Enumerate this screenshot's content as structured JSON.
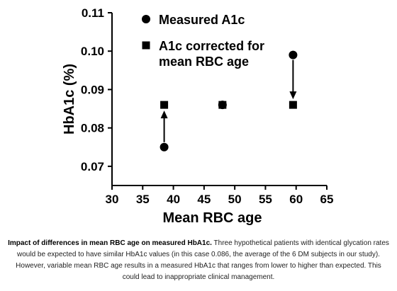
{
  "chart_data": {
    "type": "scatter",
    "xlabel": "Mean RBC age",
    "ylabel": "HbA1c (%)",
    "xlim": [
      30,
      65
    ],
    "ylim": [
      0.065,
      0.11
    ],
    "xticks": [
      "30",
      "35",
      "40",
      "45",
      "50",
      "55",
      "60",
      "65"
    ],
    "yticks": [
      "0.07",
      "0.08",
      "0.09",
      "0.10",
      "0.11"
    ],
    "grid": false,
    "legend_position": "top-right",
    "series": [
      {
        "name": "Measured A1c",
        "marker": "circle",
        "points": [
          {
            "x": 38.5,
            "y": 0.075
          },
          {
            "x": 48,
            "y": 0.086
          },
          {
            "x": 59.5,
            "y": 0.099
          }
        ]
      },
      {
        "name": "A1c corrected for mean RBC age",
        "name_lines": [
          "A1c corrected for",
          "mean RBC age"
        ],
        "marker": "square",
        "points": [
          {
            "x": 38.5,
            "y": 0.086
          },
          {
            "x": 48,
            "y": 0.086
          },
          {
            "x": 59.5,
            "y": 0.086
          }
        ]
      }
    ],
    "arrows": [
      {
        "x": 38.5,
        "from": 0.075,
        "to": 0.086
      },
      {
        "x": 59.5,
        "from": 0.099,
        "to": 0.086
      }
    ]
  },
  "caption": {
    "bold": "Impact of differences in mean RBC age on measured HbA1c.",
    "text": " Three hypothetical patients with identical glycation rates would be expected to have similar HbA1c values (in this case 0.086, the average of the 6 DM subjects in our study). However, variable mean RBC age results in a measured HbA1c that ranges from lower to higher than expected. This could lead to inappropriate clinical management."
  },
  "colors": {
    "marker": "#000000",
    "axis": "#000000"
  }
}
